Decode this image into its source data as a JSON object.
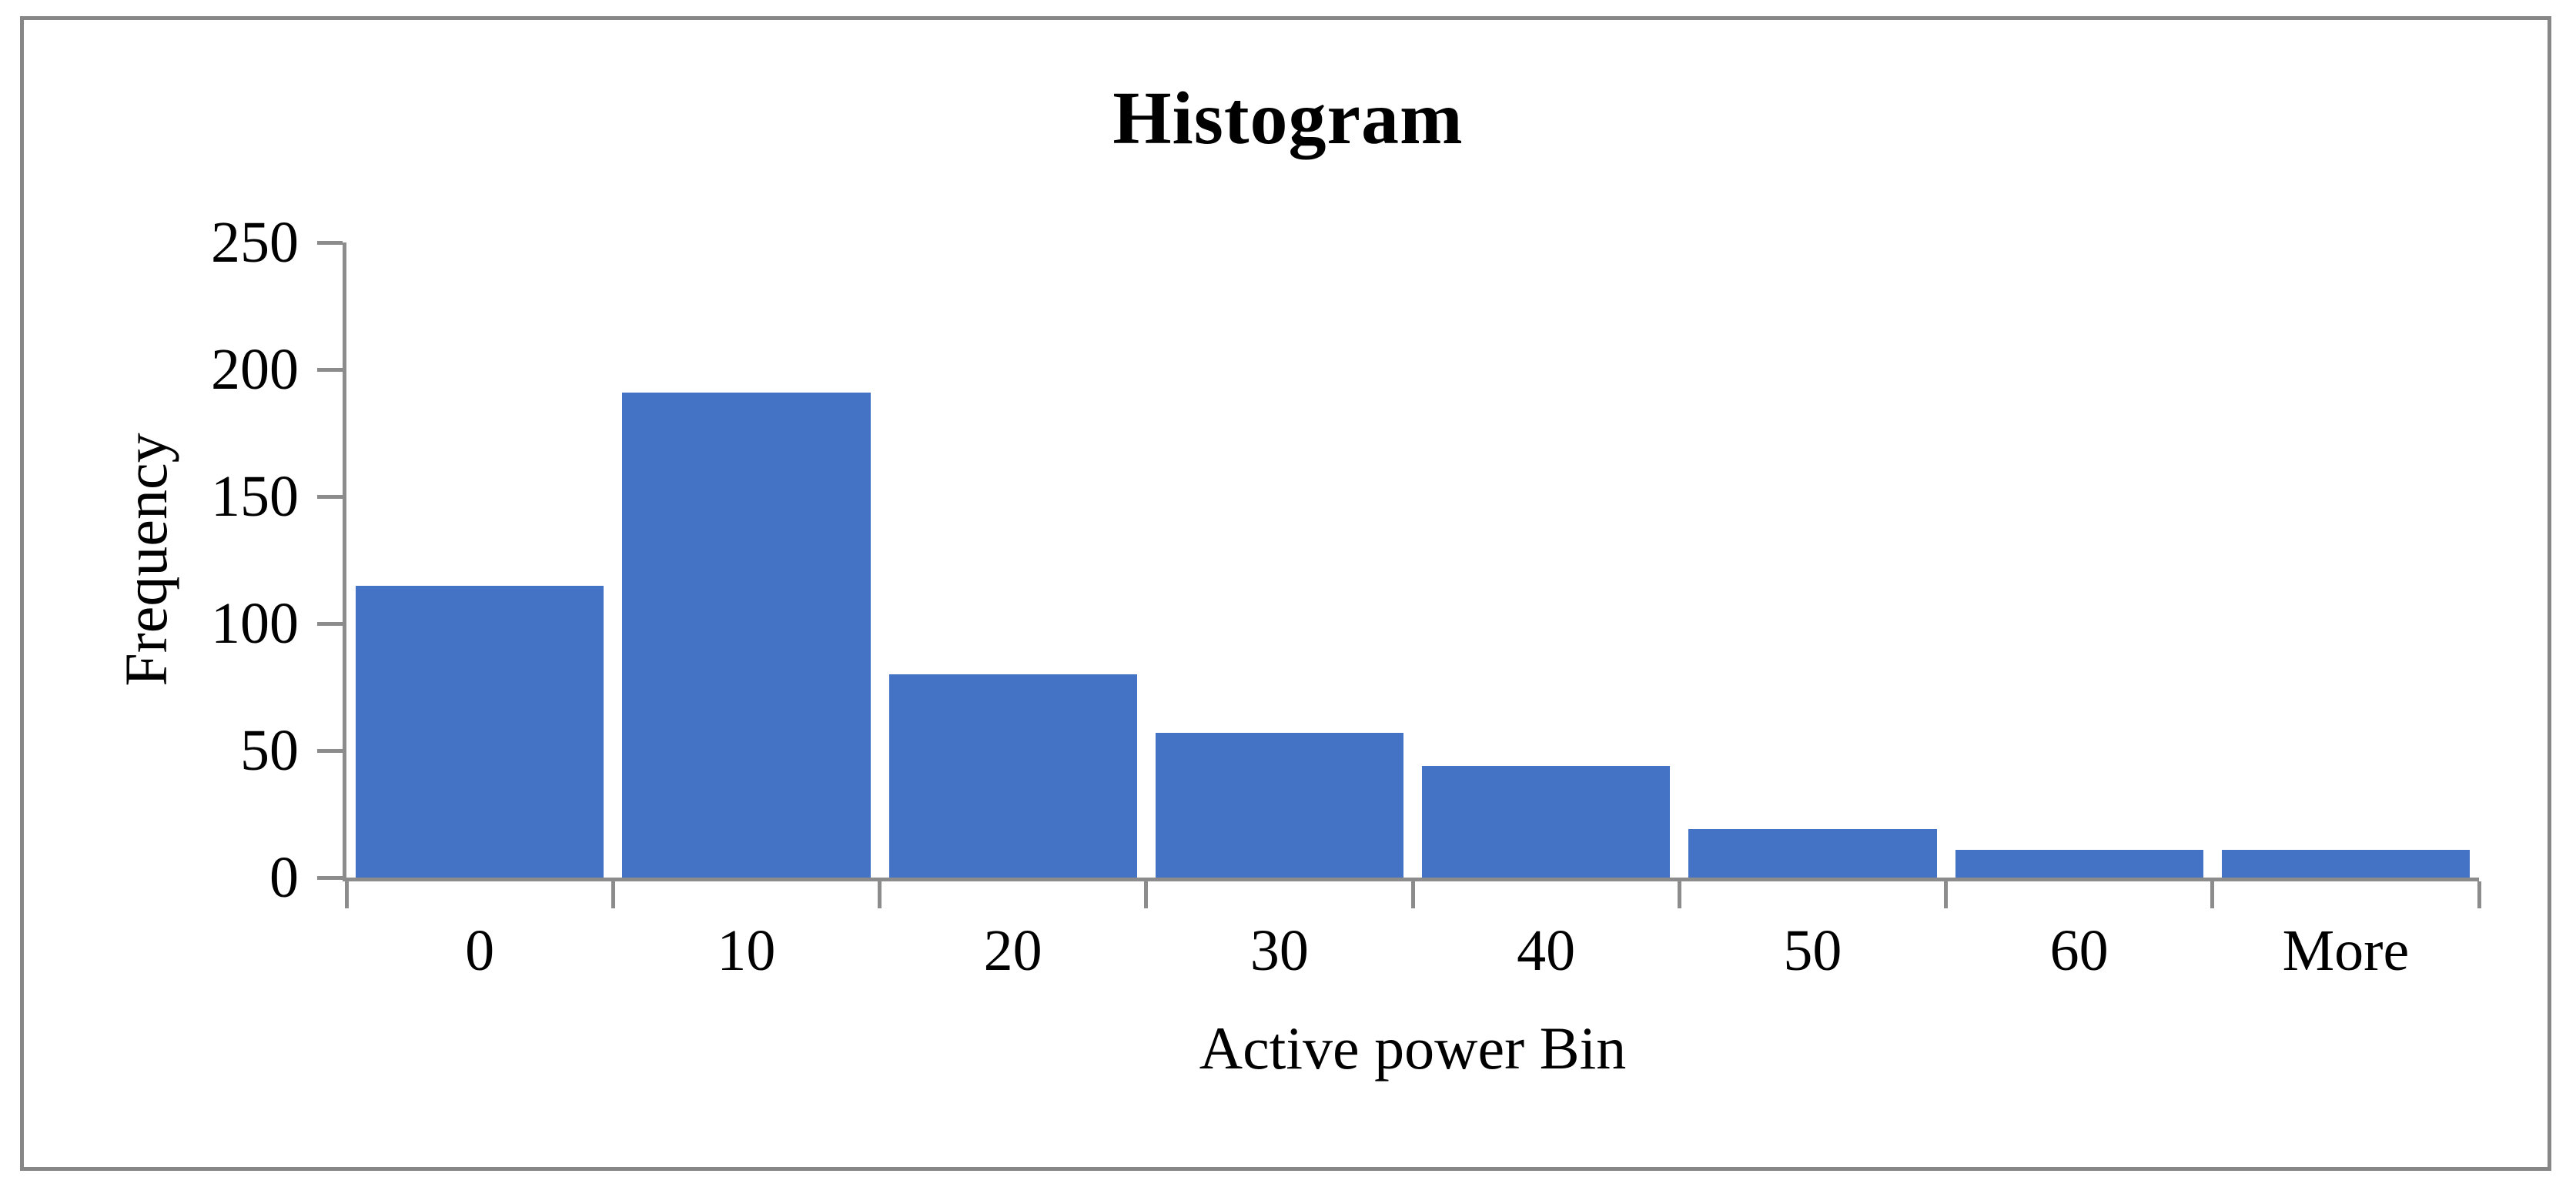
{
  "figure": {
    "background": "#ffffff",
    "border_color": "#878787",
    "text_color": "#000000"
  },
  "chart_data": {
    "type": "bar",
    "title": "Histogram",
    "xlabel": "Active power Bin",
    "ylabel": "Frequency",
    "categories": [
      "0",
      "10",
      "20",
      "30",
      "40",
      "50",
      "60",
      "More"
    ],
    "values": [
      115,
      191,
      80,
      57,
      44,
      19,
      11,
      11
    ],
    "ylim": [
      0,
      250
    ],
    "yticks": [
      0,
      50,
      100,
      150,
      200,
      250
    ],
    "bar_color": "#4472C4",
    "axis_color": "#8C8C8C",
    "grid": false,
    "legend": false
  }
}
